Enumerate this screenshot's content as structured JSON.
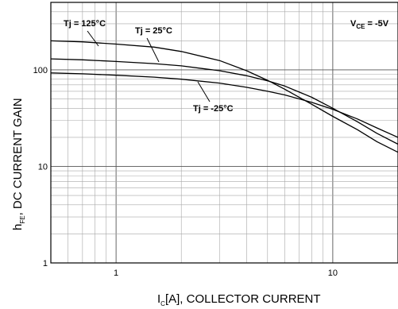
{
  "chart_data": {
    "type": "line",
    "scale": {
      "x": "log",
      "y": "log"
    },
    "xlim": [
      0.5,
      20
    ],
    "ylim": [
      1,
      500
    ],
    "grid": true,
    "x_ticks": [
      {
        "value": 1,
        "label": "1"
      },
      {
        "value": 10,
        "label": "10"
      }
    ],
    "y_ticks": [
      {
        "value": 1,
        "label": "1"
      },
      {
        "value": 10,
        "label": "10"
      },
      {
        "value": 100,
        "label": "100"
      }
    ],
    "xlabel": {
      "main": "I",
      "sub": "C",
      "rest": "[A], COLLECTOR CURRENT"
    },
    "ylabel": {
      "main": "h",
      "sub": "FE",
      "rest": ", DC CURRENT GAIN"
    },
    "condition": {
      "main": "V",
      "sub": "CE",
      "rest": " = -5V"
    },
    "series": [
      {
        "name": "Tj = 125°C",
        "x": [
          0.5,
          0.7,
          1.0,
          1.5,
          2.0,
          3.0,
          4.0,
          5.0,
          6.0,
          8.0,
          10.0,
          13.0,
          16.0,
          20.0
        ],
        "y": [
          200,
          195,
          185,
          172,
          155,
          125,
          98,
          78,
          63,
          44,
          33,
          24,
          18,
          14
        ]
      },
      {
        "name": "Tj = 25°C",
        "x": [
          0.5,
          0.7,
          1.0,
          1.5,
          2.0,
          3.0,
          4.0,
          5.0,
          6.0,
          8.0,
          10.0,
          13.0,
          16.0,
          20.0
        ],
        "y": [
          130,
          127,
          122,
          116,
          110,
          98,
          87,
          77,
          68,
          52,
          40,
          29,
          22,
          17
        ]
      },
      {
        "name": "Tj = -25°C",
        "x": [
          0.5,
          0.7,
          1.0,
          1.5,
          2.0,
          3.0,
          4.0,
          5.0,
          6.0,
          8.0,
          10.0,
          13.0,
          16.0,
          20.0
        ],
        "y": [
          93,
          91,
          88,
          84,
          80,
          73,
          66,
          60,
          55,
          46,
          39,
          31,
          25,
          20
        ]
      }
    ]
  }
}
